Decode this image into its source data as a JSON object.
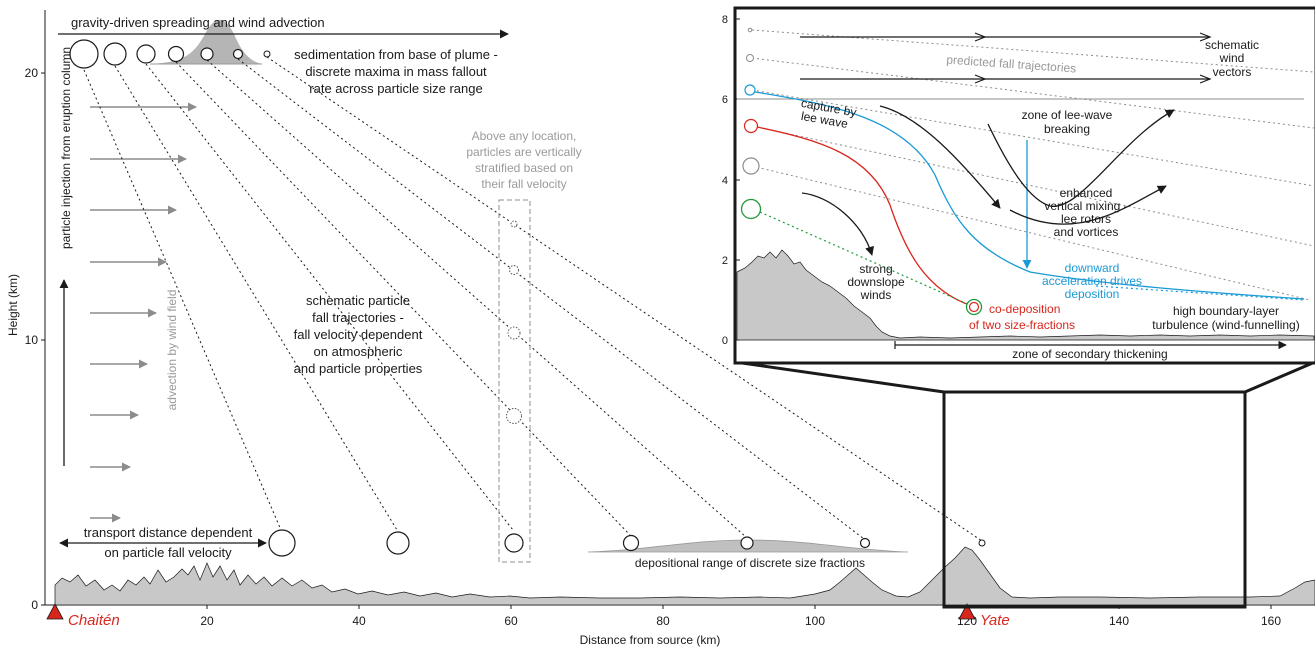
{
  "colors": {
    "ink": "#1a1a1a",
    "gray_text": "#9a9a9a",
    "terrain": "#c8c8c8",
    "arrow_gray": "#8c8c8c",
    "red": "#d9261c",
    "blue": "#1a9ad6",
    "green": "#1f9a3a"
  },
  "main": {
    "x_axis": {
      "label": "Distance from source (km)",
      "ticks": [
        "20",
        "40",
        "60",
        "80",
        "100",
        "120",
        "140",
        "160"
      ]
    },
    "y_axis": {
      "label": "Height (km)",
      "ticks": [
        "0",
        "10",
        "20"
      ]
    },
    "places": {
      "source": "Chaitén",
      "destination": "Yate"
    },
    "annotations": {
      "spreading": "gravity-driven spreading and wind advection",
      "sedimentation_1": "sedimentation from base of plume -",
      "sedimentation_2": "discrete maxima in mass fallout",
      "sedimentation_3": "rate across particle size range",
      "injection": "particle injection from eruption column",
      "advection": "advection by wind field",
      "stratified_1": "Above any location,",
      "stratified_2": "particles are vertically",
      "stratified_3": "stratified based on",
      "stratified_4": "their fall velocity",
      "trajectories_1": "schematic particle",
      "trajectories_2": "fall trajectories -",
      "trajectories_3": "fall velocity dependent",
      "trajectories_4": "on atmospheric",
      "trajectories_5": "and particle properties",
      "transport_1": "transport distance dependent",
      "transport_2": "on particle fall velocity",
      "depositional": "depositional range of discrete size fractions"
    }
  },
  "inset": {
    "y_ticks": [
      "0",
      "2",
      "4",
      "6",
      "8"
    ],
    "annotations": {
      "wind_1": "schematic",
      "wind_2": "wind",
      "wind_3": "vectors",
      "predicted": "predicted fall trajectories",
      "capture_1": "capture by",
      "capture_2": "lee wave",
      "leewave_1": "zone of lee-wave",
      "leewave_2": "breaking",
      "mixing_1": "enhanced",
      "mixing_2": "vertical mixing -",
      "mixing_3": "lee rotors",
      "mixing_4": "and vortices",
      "downslope_1": "strong",
      "downslope_2": "downslope",
      "downslope_3": "winds",
      "downward_1": "downward",
      "downward_2": "acceleration drives",
      "downward_3": "deposition",
      "codep_1": "co-deposition",
      "codep_2": "of two size-fractions",
      "turbulence_1": "high boundary-layer",
      "turbulence_2": "turbulence (wind-funnelling)",
      "secondary": "zone of secondary thickening"
    }
  }
}
